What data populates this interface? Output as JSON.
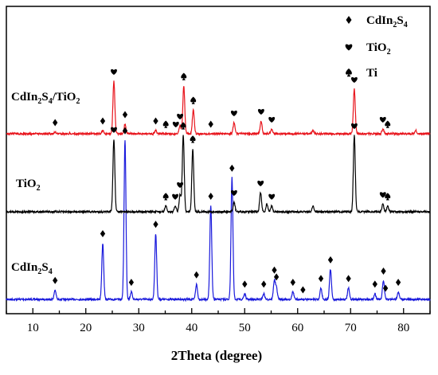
{
  "chart_data": {
    "type": "line",
    "xlabel": "2Theta (degree)",
    "ylabel": "",
    "xlim": [
      5,
      85
    ],
    "x_ticks": [
      "10",
      "20",
      "30",
      "40",
      "50",
      "60",
      "70",
      "80"
    ],
    "grid": false,
    "legend_placement": "top-right",
    "legend": [
      {
        "marker": "diamond",
        "label": "CdIn",
        "sub": "2",
        "label2": "S",
        "sub2": "4"
      },
      {
        "marker": "heart",
        "label": "TiO",
        "sub": "2",
        "label2": "",
        "sub2": ""
      },
      {
        "marker": "spade",
        "label": "Ti",
        "sub": "",
        "label2": "",
        "sub2": ""
      }
    ],
    "series": [
      {
        "label": "CdIn",
        "sub": "2",
        "label2": "S",
        "sub2": "4",
        "color": "#1a1adc",
        "baseline_frac": 0.0,
        "peaks": [
          [
            14.2,
            0.05
          ],
          [
            23.2,
            0.3
          ],
          [
            27.4,
            0.85
          ],
          [
            28.6,
            0.04
          ],
          [
            33.2,
            0.35
          ],
          [
            40.9,
            0.08
          ],
          [
            43.6,
            0.5
          ],
          [
            47.6,
            0.65
          ],
          [
            50.0,
            0.03
          ],
          [
            53.6,
            0.03
          ],
          [
            55.6,
            0.1
          ],
          [
            56.0,
            0.06
          ],
          [
            59.1,
            0.04
          ],
          [
            64.4,
            0.06
          ],
          [
            66.2,
            0.16
          ],
          [
            69.6,
            0.06
          ],
          [
            74.6,
            0.03
          ],
          [
            76.2,
            0.1
          ],
          [
            79.0,
            0.04
          ]
        ],
        "markers": [
          [
            "diamond",
            14.2
          ],
          [
            "diamond",
            23.2
          ],
          [
            "diamond",
            27.4
          ],
          [
            "diamond",
            28.6
          ],
          [
            "diamond",
            33.2
          ],
          [
            "diamond",
            40.9
          ],
          [
            "diamond",
            43.6
          ],
          [
            "diamond",
            47.6
          ],
          [
            "diamond",
            50.0
          ],
          [
            "diamond",
            53.6
          ],
          [
            "diamond",
            55.6
          ],
          [
            "diamond",
            56.0
          ],
          [
            "diamond",
            59.1
          ],
          [
            "diamond",
            61.0
          ],
          [
            "diamond",
            64.4
          ],
          [
            "diamond",
            66.2
          ],
          [
            "diamond",
            69.6
          ],
          [
            "diamond",
            74.6
          ],
          [
            "diamond",
            76.2
          ],
          [
            "diamond",
            76.6
          ],
          [
            "diamond",
            79.0
          ]
        ]
      },
      {
        "label": "TiO",
        "sub": "2",
        "label2": "",
        "sub2": "",
        "color": "#000000",
        "baseline_frac": 0.0,
        "peaks": [
          [
            25.3,
            0.38
          ],
          [
            35.1,
            0.03
          ],
          [
            36.9,
            0.03
          ],
          [
            37.8,
            0.09
          ],
          [
            38.4,
            0.4
          ],
          [
            40.2,
            0.33
          ],
          [
            48.0,
            0.05
          ],
          [
            53.0,
            0.1
          ],
          [
            54.2,
            0.04
          ],
          [
            55.1,
            0.03
          ],
          [
            62.9,
            0.03
          ],
          [
            70.7,
            0.4
          ],
          [
            76.1,
            0.04
          ],
          [
            77.0,
            0.03
          ]
        ],
        "markers": [
          [
            "heart",
            25.3
          ],
          [
            "spade",
            35.1
          ],
          [
            "heart",
            36.9
          ],
          [
            "heart",
            37.8
          ],
          [
            "spade",
            38.4
          ],
          [
            "spade",
            40.2
          ],
          [
            "heart",
            48.0
          ],
          [
            "heart",
            53.0
          ],
          [
            "heart",
            55.1
          ],
          [
            "heart",
            70.7
          ],
          [
            "heart",
            76.1
          ],
          [
            "spade",
            77.0
          ]
        ]
      },
      {
        "label": "CdIn",
        "sub": "2",
        "label2": "S",
        "sub2": "4/TiO",
        "sub3": "2",
        "color": "#e8141c",
        "baseline_frac": 0.0,
        "peaks": [
          [
            14.2,
            0.01
          ],
          [
            23.2,
            0.02
          ],
          [
            25.3,
            0.33
          ],
          [
            27.4,
            0.06
          ],
          [
            33.2,
            0.02
          ],
          [
            37.8,
            0.05
          ],
          [
            38.5,
            0.3
          ],
          [
            40.3,
            0.15
          ],
          [
            48.0,
            0.07
          ],
          [
            53.1,
            0.08
          ],
          [
            55.1,
            0.03
          ],
          [
            62.9,
            0.02
          ],
          [
            70.7,
            0.28
          ],
          [
            76.1,
            0.03
          ],
          [
            82.3,
            0.02
          ]
        ],
        "markers": [
          [
            "diamond",
            14.2
          ],
          [
            "diamond",
            23.2
          ],
          [
            "heart",
            25.3
          ],
          [
            "diamond",
            27.4
          ],
          [
            "diamond",
            33.2
          ],
          [
            "spade",
            35.1
          ],
          [
            "heart",
            37.0
          ],
          [
            "heart",
            37.8
          ],
          [
            "spade",
            38.5
          ],
          [
            "spade",
            40.3
          ],
          [
            "diamond",
            43.6
          ],
          [
            "heart",
            48.0
          ],
          [
            "heart",
            53.1
          ],
          [
            "heart",
            55.1
          ],
          [
            "heart",
            70.7
          ],
          [
            "heart",
            76.1
          ],
          [
            "spade",
            77.0
          ]
        ]
      }
    ]
  }
}
